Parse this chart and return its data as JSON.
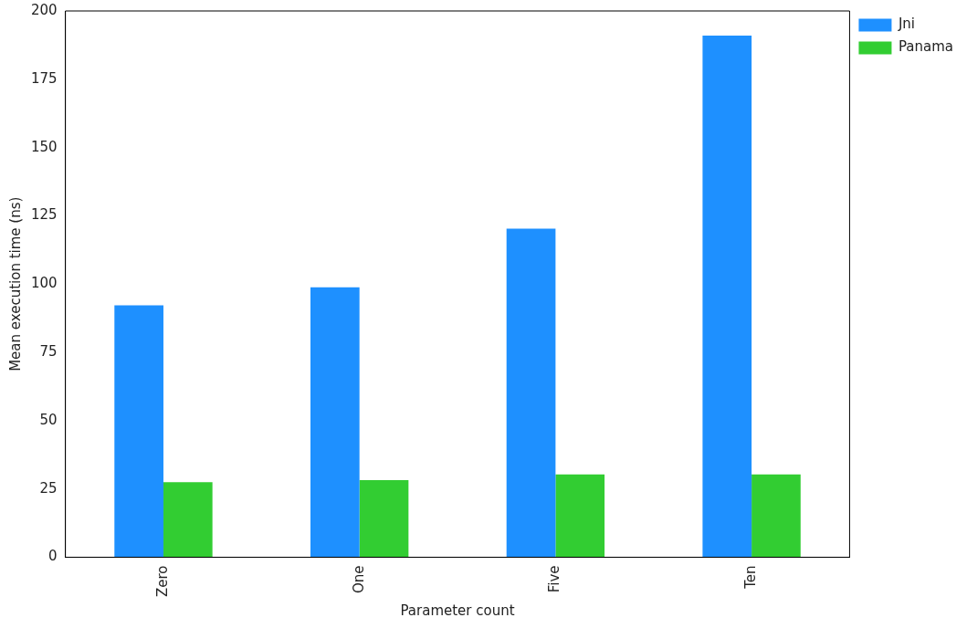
{
  "chart_data": {
    "type": "bar",
    "xlabel": "Parameter count",
    "ylabel": "Mean execution time (ns)",
    "categories": [
      "Zero",
      "One",
      "Five",
      "Ten"
    ],
    "series": [
      {
        "name": "Jni",
        "color": "#1e90ff",
        "values": [
          92.2,
          98.8,
          120.3,
          191
        ]
      },
      {
        "name": "Panama",
        "color": "#32cd32",
        "values": [
          27.5,
          28.2,
          30.3,
          30.3
        ]
      }
    ],
    "ylim": [
      0,
      200
    ],
    "yticks": [
      0,
      25,
      50,
      75,
      100,
      125,
      150,
      175,
      200
    ],
    "grid": false,
    "legend": "top right"
  }
}
